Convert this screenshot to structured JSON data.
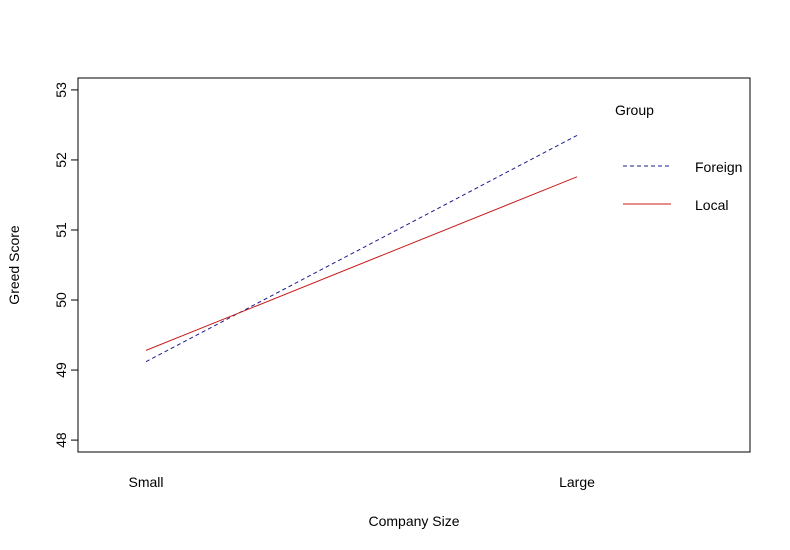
{
  "chart_data": {
    "type": "line",
    "categories": [
      "Small",
      "Large"
    ],
    "series": [
      {
        "name": "Foreign",
        "values": [
          49.12,
          52.35
        ],
        "color": "#1c1c8c",
        "linestyle": "dashed"
      },
      {
        "name": "Local",
        "values": [
          49.28,
          51.76
        ],
        "color": "#c81e1e",
        "linestyle": "solid"
      }
    ],
    "xlabel": "Company Size",
    "ylabel": "Greed Score",
    "ylim": [
      47.83,
      53.17
    ],
    "yticks": [
      48,
      49,
      50,
      51,
      52,
      53
    ],
    "legend": {
      "title": "Group",
      "position": "top-right"
    },
    "grid": false
  }
}
